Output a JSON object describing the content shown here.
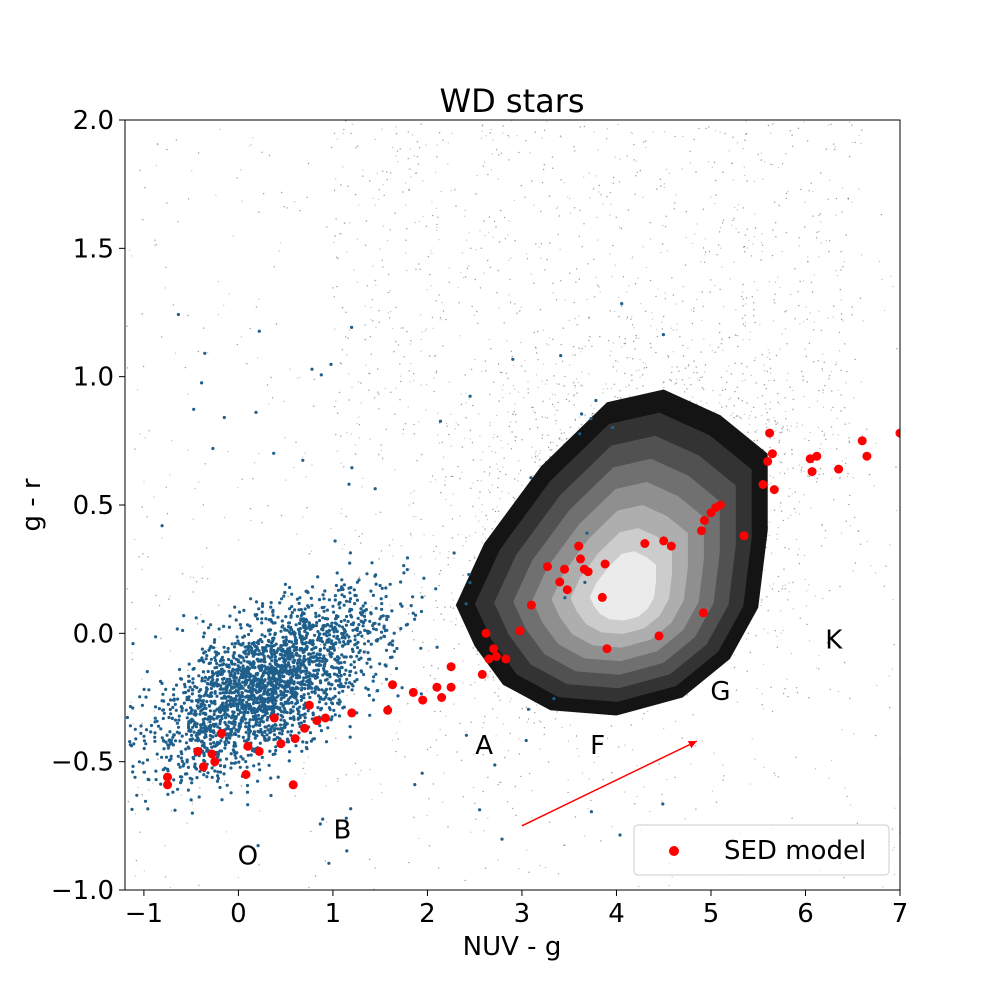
{
  "chart_data": {
    "type": "scatter",
    "title": "WD stars",
    "xlabel": "NUV - g",
    "ylabel": "g - r",
    "xlim": [
      -1.2,
      7
    ],
    "ylim": [
      -1.0,
      2.0
    ],
    "x_ticks": [
      -1,
      0,
      1,
      2,
      3,
      4,
      5,
      6,
      7
    ],
    "x_tick_labels": [
      "−1",
      "0",
      "1",
      "2",
      "3",
      "4",
      "5",
      "6",
      "7"
    ],
    "y_ticks": [
      -1.0,
      -0.5,
      0.0,
      0.5,
      1.0,
      1.5,
      2.0
    ],
    "y_tick_labels": [
      "−1.0",
      "−0.5",
      "0.0",
      "0.5",
      "1.0",
      "1.5",
      "2.0"
    ],
    "grid": false,
    "legend": {
      "placement": "lower-right",
      "entries": [
        "SED model"
      ]
    },
    "colors": {
      "background_points": "#000000",
      "wd_points": "#1f5f8b",
      "sed_model": "#ff0000",
      "arrow": "#ff0000"
    },
    "background_distribution": {
      "description_level": "dense grey field stars with filled density contours",
      "density_peak": [
        4.1,
        0.15
      ],
      "contour_levels": 8,
      "contour_outline": [
        [
          2.3,
          0.11
        ],
        [
          2.6,
          0.35
        ],
        [
          3.2,
          0.65
        ],
        [
          3.9,
          0.9
        ],
        [
          4.5,
          0.95
        ],
        [
          5.1,
          0.85
        ],
        [
          5.6,
          0.7
        ],
        [
          5.6,
          0.4
        ],
        [
          5.5,
          0.1
        ],
        [
          5.2,
          -0.1
        ],
        [
          4.7,
          -0.25
        ],
        [
          4.0,
          -0.32
        ],
        [
          3.3,
          -0.3
        ],
        [
          2.8,
          -0.2
        ],
        [
          2.5,
          -0.05
        ]
      ]
    },
    "wd_star_cluster": {
      "center": [
        0.3,
        -0.2
      ],
      "spread": [
        0.6,
        0.13
      ],
      "approx_count": 2500
    },
    "series": [
      {
        "name": "SED model",
        "x": [
          -0.75,
          -0.75,
          -0.43,
          -0.37,
          -0.28,
          -0.25,
          -0.18,
          0.08,
          0.1,
          0.22,
          0.38,
          0.45,
          0.58,
          0.6,
          0.7,
          0.75,
          0.83,
          0.92,
          1.2,
          1.58,
          1.63,
          1.85,
          1.95,
          2.1,
          2.15,
          2.25,
          2.25,
          2.58,
          2.62,
          2.65,
          2.7,
          2.73,
          2.83,
          2.98,
          3.1,
          3.27,
          3.4,
          3.45,
          3.48,
          3.6,
          3.62,
          3.66,
          3.7,
          3.85,
          3.88,
          3.9,
          4.3,
          4.45,
          4.5,
          4.58,
          4.9,
          4.92,
          4.93,
          5.0,
          5.05,
          5.1,
          5.35,
          5.55,
          5.6,
          5.62,
          5.65,
          5.67,
          6.05,
          6.07,
          6.12,
          6.35,
          6.6,
          6.65,
          7.0
        ],
        "y": [
          -0.56,
          -0.59,
          -0.46,
          -0.52,
          -0.47,
          -0.5,
          -0.39,
          -0.55,
          -0.44,
          -0.46,
          -0.33,
          -0.43,
          -0.59,
          -0.41,
          -0.37,
          -0.28,
          -0.34,
          -0.33,
          -0.31,
          -0.3,
          -0.2,
          -0.23,
          -0.26,
          -0.21,
          -0.25,
          -0.13,
          -0.21,
          -0.16,
          -0.0,
          -0.1,
          -0.06,
          -0.09,
          -0.1,
          0.01,
          0.11,
          0.26,
          0.2,
          0.25,
          0.17,
          0.34,
          0.29,
          0.25,
          0.24,
          0.14,
          0.27,
          -0.06,
          0.35,
          -0.01,
          0.36,
          0.34,
          0.4,
          0.08,
          0.44,
          0.47,
          0.49,
          0.5,
          0.38,
          0.58,
          0.67,
          0.78,
          0.7,
          0.56,
          0.68,
          0.63,
          0.69,
          0.64,
          0.75,
          0.69,
          0.78
        ]
      }
    ],
    "arrow": {
      "from": [
        3.0,
        -0.75
      ],
      "to": [
        4.85,
        -0.42
      ]
    },
    "annotations": [
      {
        "text": "O",
        "x": 0.1,
        "y": -0.9
      },
      {
        "text": "B",
        "x": 1.1,
        "y": -0.8
      },
      {
        "text": "A",
        "x": 2.6,
        "y": -0.47
      },
      {
        "text": "F",
        "x": 3.8,
        "y": -0.47
      },
      {
        "text": "G",
        "x": 5.1,
        "y": -0.26
      },
      {
        "text": "K",
        "x": 6.3,
        "y": -0.06
      }
    ]
  }
}
